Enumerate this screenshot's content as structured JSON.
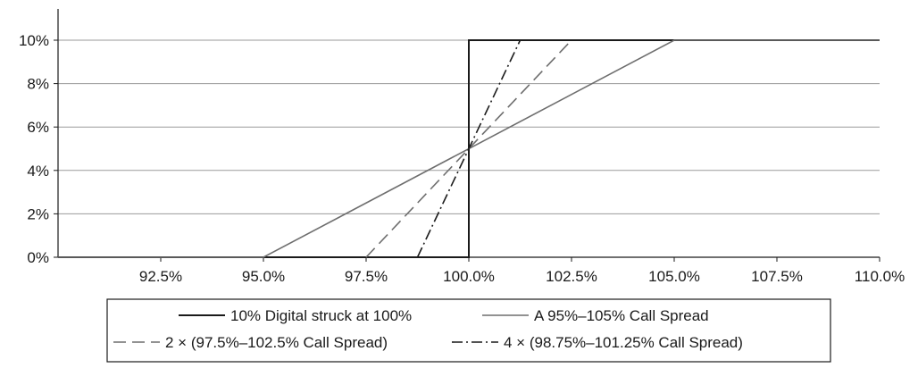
{
  "chart_data": {
    "type": "line",
    "title": "",
    "xlabel": "",
    "ylabel": "",
    "xlim": [
      90.0,
      110.0
    ],
    "ylim": [
      0,
      10
    ],
    "x_ticks": [
      92.5,
      95.0,
      97.5,
      100.0,
      102.5,
      105.0,
      107.5,
      110.0
    ],
    "x_tick_labels": [
      "92.5%",
      "95.0%",
      "97.5%",
      "100.0%",
      "102.5%",
      "105.0%",
      "107.5%",
      "110.0%"
    ],
    "y_ticks": [
      0,
      2,
      4,
      6,
      8,
      10
    ],
    "y_tick_labels": [
      "0%",
      "2%",
      "4%",
      "6%",
      "8%",
      "10%"
    ],
    "grid": "horizontal",
    "legend_position": "bottom",
    "series": [
      {
        "name": "10% Digital struck at 100%",
        "style": "solid",
        "color": "#1a1a1a",
        "x": [
          90.0,
          100.0,
          100.0,
          110.0
        ],
        "y": [
          0,
          0,
          10,
          10
        ]
      },
      {
        "name": "A 95%–105% Call Spread",
        "style": "solid",
        "color": "#6e6e6e",
        "x": [
          90.0,
          95.0,
          105.0,
          110.0
        ],
        "y": [
          0,
          0,
          10,
          10
        ]
      },
      {
        "name": "2 × (97.5%–102.5% Call Spread)",
        "style": "dash",
        "color": "#6e6e6e",
        "x": [
          97.5,
          102.5
        ],
        "y": [
          0,
          10
        ]
      },
      {
        "name": "4 × (98.75%–101.25% Call Spread)",
        "style": "dashdot",
        "color": "#1a1a1a",
        "x": [
          98.75,
          101.25
        ],
        "y": [
          0,
          10
        ]
      }
    ]
  }
}
